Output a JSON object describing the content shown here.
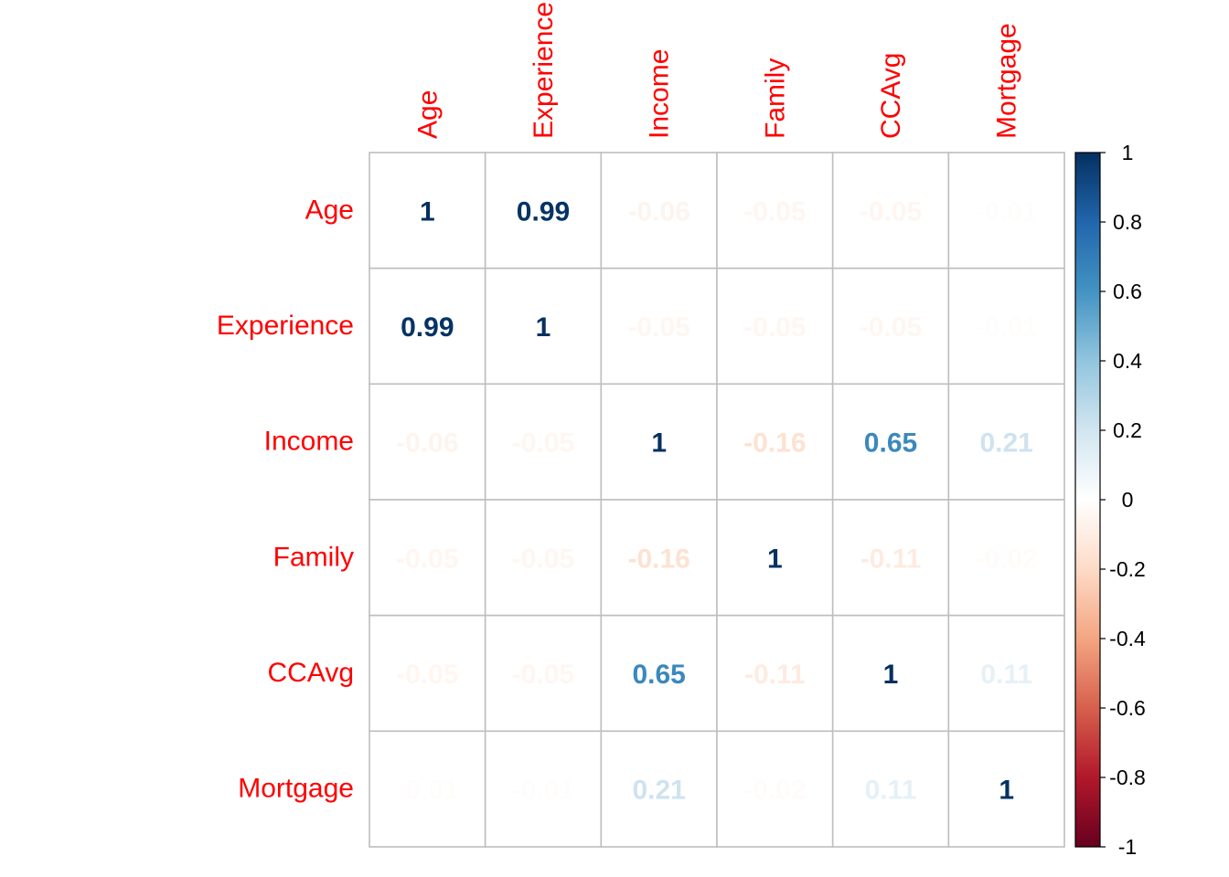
{
  "chart_data": {
    "type": "heatmap",
    "title": "",
    "variables": [
      "Age",
      "Experience",
      "Income",
      "Family",
      "CCAvg",
      "Mortgage"
    ],
    "matrix": [
      [
        1,
        0.99,
        -0.06,
        -0.05,
        -0.05,
        -0.01
      ],
      [
        0.99,
        1,
        -0.05,
        -0.05,
        -0.05,
        -0.01
      ],
      [
        -0.06,
        -0.05,
        1,
        -0.16,
        0.65,
        0.21
      ],
      [
        -0.05,
        -0.05,
        -0.16,
        1,
        -0.11,
        -0.02
      ],
      [
        -0.05,
        -0.05,
        0.65,
        -0.11,
        1,
        0.11
      ],
      [
        -0.01,
        -0.01,
        0.21,
        -0.02,
        0.11,
        1
      ]
    ],
    "value_labels": [
      [
        "1",
        "0.99",
        "-0.06",
        "-0.05",
        "-0.05",
        "-0.01"
      ],
      [
        "0.99",
        "1",
        "-0.05",
        "-0.05",
        "-0.05",
        "-0.01"
      ],
      [
        "-0.06",
        "-0.05",
        "1",
        "-0.16",
        "0.65",
        "0.21"
      ],
      [
        "-0.05",
        "-0.05",
        "-0.16",
        "1",
        "-0.11",
        "-0.02"
      ],
      [
        "-0.05",
        "-0.05",
        "0.65",
        "-0.11",
        "1",
        "0.11"
      ],
      [
        "-0.01",
        "-0.01",
        "0.21",
        "-0.02",
        "0.11",
        "1"
      ]
    ],
    "color_scale": {
      "range": [
        -1,
        1
      ],
      "ticks": [
        1,
        0.8,
        0.6,
        0.4,
        0.2,
        0,
        -0.2,
        -0.4,
        -0.6,
        -0.8,
        -1
      ],
      "tick_labels": [
        "1",
        "0.8",
        "0.6",
        "0.4",
        "0.2",
        "0",
        "-0.2",
        "-0.4",
        "-0.6",
        "-0.8",
        "-1"
      ],
      "stops": [
        {
          "value": -1.0,
          "color": "#67001F"
        },
        {
          "value": -0.8,
          "color": "#B2182B"
        },
        {
          "value": -0.6,
          "color": "#D6604D"
        },
        {
          "value": -0.4,
          "color": "#F4A582"
        },
        {
          "value": -0.2,
          "color": "#FDDBC7"
        },
        {
          "value": 0.0,
          "color": "#FFFFFF"
        },
        {
          "value": 0.2,
          "color": "#D1E5F0"
        },
        {
          "value": 0.4,
          "color": "#92C5DE"
        },
        {
          "value": 0.6,
          "color": "#4393C3"
        },
        {
          "value": 0.8,
          "color": "#2166AC"
        },
        {
          "value": 1.0,
          "color": "#053061"
        }
      ]
    },
    "label_color": "#FF0000",
    "grid_color": "#BEBEBE",
    "legend_position": "right",
    "grid": true
  }
}
